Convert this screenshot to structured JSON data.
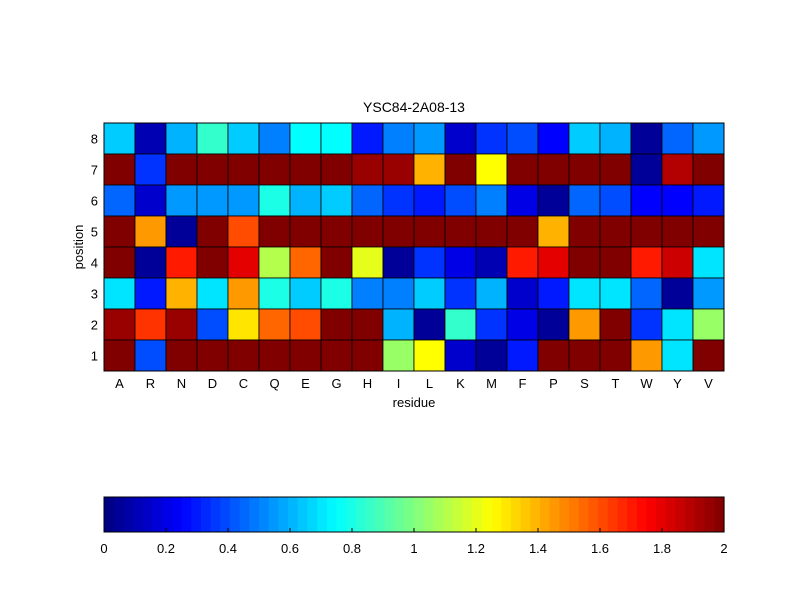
{
  "chart_data": {
    "type": "heatmap",
    "title": "YSC84-2A08-13",
    "xlabel": "residue",
    "ylabel": "position",
    "x_categories": [
      "A",
      "R",
      "N",
      "D",
      "C",
      "Q",
      "E",
      "G",
      "H",
      "I",
      "L",
      "K",
      "M",
      "F",
      "P",
      "S",
      "T",
      "W",
      "Y",
      "V"
    ],
    "y_categories": [
      "8",
      "7",
      "6",
      "5",
      "4",
      "3",
      "2",
      "1"
    ],
    "color_range": [
      0,
      2
    ],
    "colormap": "jet",
    "colorbar_ticks": [
      "0",
      "0.2",
      "0.4",
      "0.6",
      "0.8",
      "1",
      "1.2",
      "1.4",
      "1.6",
      "1.8",
      "2"
    ],
    "values": [
      [
        0.65,
        0.1,
        0.6,
        0.85,
        0.65,
        0.5,
        0.75,
        0.75,
        0.3,
        0.5,
        0.55,
        0.15,
        0.35,
        0.4,
        0.25,
        0.65,
        0.6,
        0.05,
        0.45,
        0.55
      ],
      [
        2.0,
        0.35,
        2.0,
        2.0,
        2.0,
        2.0,
        2.0,
        2.0,
        1.95,
        1.95,
        1.4,
        2.0,
        1.25,
        2.0,
        2.0,
        2.0,
        2.0,
        0.05,
        1.9,
        2.0
      ],
      [
        0.45,
        0.15,
        0.55,
        0.55,
        0.55,
        0.8,
        0.6,
        0.65,
        0.45,
        0.35,
        0.3,
        0.4,
        0.5,
        0.2,
        0.05,
        0.45,
        0.4,
        0.25,
        0.25,
        0.3
      ],
      [
        2.0,
        1.45,
        0.05,
        2.0,
        1.6,
        2.0,
        2.0,
        2.0,
        2.0,
        2.0,
        2.0,
        2.0,
        2.0,
        2.0,
        1.4,
        2.0,
        2.0,
        2.0,
        2.0,
        2.0
      ],
      [
        2.0,
        0.05,
        1.7,
        2.0,
        1.8,
        1.1,
        1.55,
        2.0,
        1.2,
        0.05,
        0.35,
        0.2,
        0.1,
        1.7,
        1.8,
        2.0,
        2.0,
        1.7,
        1.85,
        0.7
      ],
      [
        0.7,
        0.3,
        1.4,
        0.7,
        1.45,
        0.8,
        0.65,
        0.8,
        0.5,
        0.5,
        0.65,
        0.35,
        0.6,
        0.15,
        0.3,
        0.7,
        0.7,
        0.45,
        0.05,
        0.55
      ],
      [
        1.95,
        1.65,
        1.95,
        0.4,
        1.3,
        1.55,
        1.6,
        2.0,
        2.0,
        0.6,
        0.05,
        0.85,
        0.35,
        0.2,
        0.05,
        1.45,
        2.0,
        0.35,
        0.7,
        1.05
      ],
      [
        2.0,
        0.4,
        2.0,
        2.0,
        2.0,
        2.0,
        2.0,
        2.0,
        2.0,
        1.05,
        1.25,
        0.15,
        0.05,
        0.3,
        2.0,
        2.0,
        2.0,
        1.45,
        0.7,
        2.0
      ]
    ]
  }
}
